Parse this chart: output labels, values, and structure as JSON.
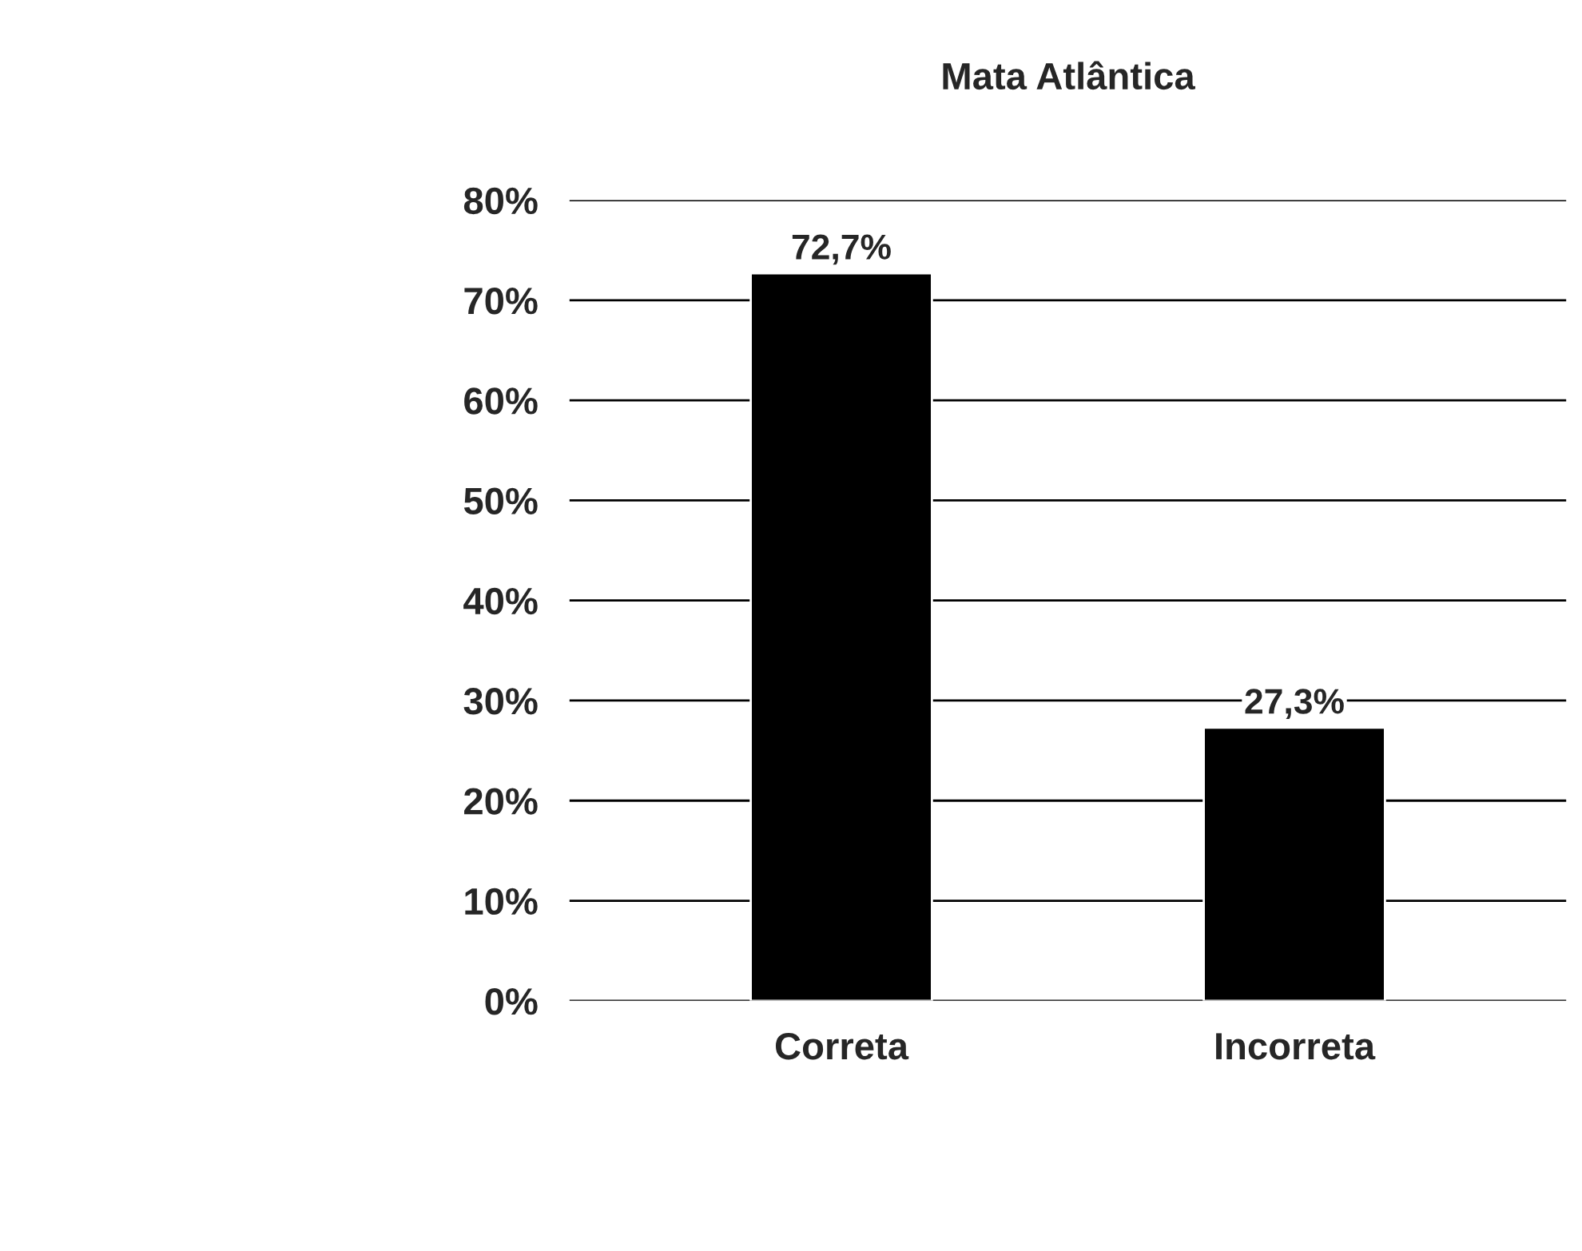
{
  "chart_data": {
    "type": "bar",
    "title": "Mata Atlântica",
    "categories": [
      "Correta",
      "Incorreta"
    ],
    "values": [
      72.7,
      27.3
    ],
    "color": "#000000",
    "value_labels": [
      "72,7%",
      "27,3%"
    ],
    "ylim": [
      0,
      80
    ],
    "yticks": [
      {
        "value": 0,
        "label": "0%"
      },
      {
        "value": 10,
        "label": "10%"
      },
      {
        "value": 20,
        "label": "20%"
      },
      {
        "value": 30,
        "label": "30%"
      },
      {
        "value": 40,
        "label": "40%"
      },
      {
        "value": 50,
        "label": "50%"
      },
      {
        "value": 60,
        "label": "60%"
      },
      {
        "value": 70,
        "label": "70%"
      },
      {
        "value": 80,
        "label": "80%"
      }
    ],
    "grid": "y",
    "legend": false
  }
}
